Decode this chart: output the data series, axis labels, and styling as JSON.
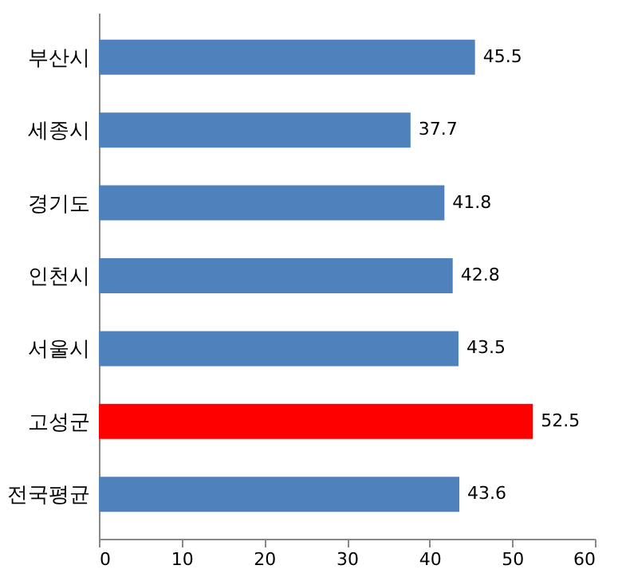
{
  "chart_data": {
    "type": "bar",
    "orientation": "horizontal",
    "categories": [
      "부산시",
      "세종시",
      "경기도",
      "인천시",
      "서울시",
      "고성군",
      "전국평균"
    ],
    "values": [
      45.5,
      37.7,
      41.8,
      42.8,
      43.5,
      52.5,
      43.6
    ],
    "colors": [
      "#4f81bd",
      "#4f81bd",
      "#4f81bd",
      "#4f81bd",
      "#4f81bd",
      "#ff0000",
      "#4f81bd"
    ],
    "xlim": [
      0,
      60
    ],
    "xticks": [
      0,
      10,
      20,
      30,
      40,
      50,
      60
    ],
    "data_labels": true
  }
}
